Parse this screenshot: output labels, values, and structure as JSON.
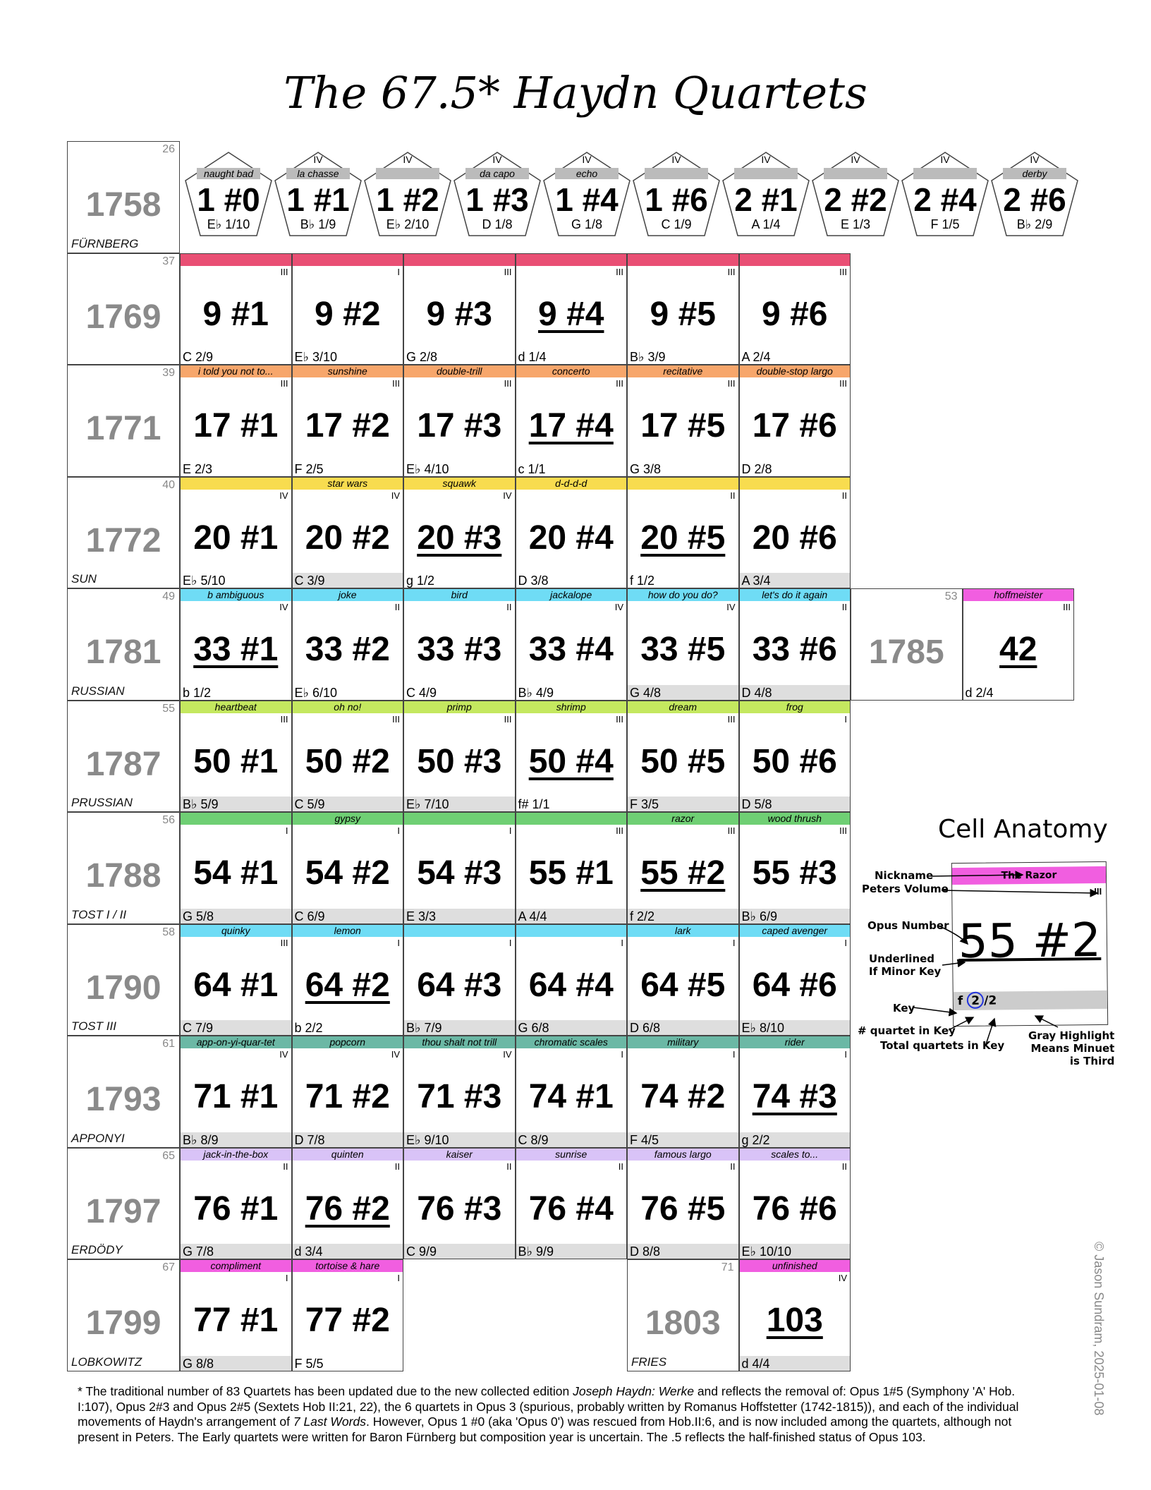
{
  "title": "The 67.5* Haydn Quartets",
  "rows": [
    {
      "index": "26",
      "year": "1758",
      "name": "FÜRNBERG",
      "pentagon": true,
      "cells": [
        {
          "vol": "",
          "nick": "naught bad",
          "opus": "1 #0",
          "key": "E♭ 1/10",
          "band": "#bbbbbb"
        },
        {
          "vol": "IV",
          "nick": "la chasse",
          "opus": "1 #1",
          "key": "B♭ 1/9",
          "band": "#bbbbbb"
        },
        {
          "vol": "IV",
          "nick": "",
          "opus": "1 #2",
          "key": "E♭ 2/10",
          "band": "#bbbbbb"
        },
        {
          "vol": "IV",
          "nick": "da capo",
          "opus": "1 #3",
          "key": "D 1/8",
          "band": "#bbbbbb"
        },
        {
          "vol": "IV",
          "nick": "echo",
          "opus": "1 #4",
          "key": "G 1/8",
          "band": "#bbbbbb"
        },
        {
          "vol": "IV",
          "nick": "",
          "opus": "1 #6",
          "key": "C 1/9",
          "band": "#bbbbbb"
        },
        {
          "vol": "IV",
          "nick": "",
          "opus": "2 #1",
          "key": "A 1/4",
          "band": "#bbbbbb"
        },
        {
          "vol": "IV",
          "nick": "",
          "opus": "2 #2",
          "key": "E 1/3",
          "band": "#bbbbbb"
        },
        {
          "vol": "IV",
          "nick": "",
          "opus": "2 #4",
          "key": "F 1/5",
          "band": "#bbbbbb"
        },
        {
          "vol": "IV",
          "nick": "derby",
          "opus": "2 #6",
          "key": "B♭ 2/9",
          "band": "#bbbbbb"
        }
      ]
    },
    {
      "index": "37",
      "year": "1769",
      "name": "",
      "cells": [
        {
          "vol": "III",
          "nick": "",
          "opus": "9 #1",
          "key": "C 2/9",
          "minor": false,
          "gray": false,
          "band": "#e94f74"
        },
        {
          "vol": "I",
          "nick": "",
          "opus": "9 #2",
          "key": "E♭ 3/10",
          "minor": false,
          "gray": false,
          "band": "#e94f74"
        },
        {
          "vol": "III",
          "nick": "",
          "opus": "9 #3",
          "key": "G 2/8",
          "minor": false,
          "gray": false,
          "band": "#e94f74"
        },
        {
          "vol": "III",
          "nick": "",
          "opus": "9 #4",
          "key": "d 1/4",
          "minor": true,
          "gray": false,
          "band": "#e94f74"
        },
        {
          "vol": "III",
          "nick": "",
          "opus": "9 #5",
          "key": "B♭ 3/9",
          "minor": false,
          "gray": false,
          "band": "#e94f74"
        },
        {
          "vol": "III",
          "nick": "",
          "opus": "9 #6",
          "key": "A 2/4",
          "minor": false,
          "gray": false,
          "band": "#e94f74"
        }
      ]
    },
    {
      "index": "39",
      "year": "1771",
      "name": "",
      "cells": [
        {
          "vol": "III",
          "nick": "i told you not to...",
          "opus": "17 #1",
          "key": "E 2/3",
          "minor": false,
          "gray": false,
          "band": "#f7a66b"
        },
        {
          "vol": "III",
          "nick": "sunshine",
          "opus": "17 #2",
          "key": "F 2/5",
          "minor": false,
          "gray": false,
          "band": "#f7a66b"
        },
        {
          "vol": "III",
          "nick": "double-trill",
          "opus": "17 #3",
          "key": "E♭ 4/10",
          "minor": false,
          "gray": false,
          "band": "#f7a66b"
        },
        {
          "vol": "III",
          "nick": "concerto",
          "opus": "17 #4",
          "key": "c 1/1",
          "minor": true,
          "gray": false,
          "band": "#f7a66b"
        },
        {
          "vol": "III",
          "nick": "recitative",
          "opus": "17 #5",
          "key": "G 3/8",
          "minor": false,
          "gray": false,
          "band": "#f7a66b"
        },
        {
          "vol": "III",
          "nick": "double-stop largo",
          "opus": "17 #6",
          "key": "D 2/8",
          "minor": false,
          "gray": false,
          "band": "#f7a66b"
        }
      ]
    },
    {
      "index": "40",
      "year": "1772",
      "name": "SUN",
      "cells": [
        {
          "vol": "IV",
          "nick": "",
          "opus": "20 #1",
          "key": "E♭ 5/10",
          "minor": false,
          "gray": false,
          "band": "#f8dc4f"
        },
        {
          "vol": "IV",
          "nick": "star wars",
          "opus": "20 #2",
          "key": "C 3/9",
          "minor": false,
          "gray": true,
          "band": "#f8dc4f"
        },
        {
          "vol": "IV",
          "nick": "squawk",
          "opus": "20 #3",
          "key": "g 1/2",
          "minor": true,
          "gray": false,
          "band": "#f8dc4f"
        },
        {
          "vol": "",
          "nick": "d-d-d-d",
          "opus": "20 #4",
          "key": "D 3/8",
          "minor": false,
          "gray": false,
          "band": "#f8dc4f"
        },
        {
          "vol": "II",
          "nick": "",
          "opus": "20 #5",
          "key": "f 1/2",
          "minor": true,
          "gray": false,
          "band": "#f8dc4f"
        },
        {
          "vol": "II",
          "nick": "",
          "opus": "20 #6",
          "key": "A 3/4",
          "minor": false,
          "gray": true,
          "band": "#f8dc4f"
        }
      ]
    },
    {
      "index": "49",
      "year": "1781",
      "name": "RUSSIAN",
      "cells": [
        {
          "vol": "IV",
          "nick": "b ambiguous",
          "opus": "33 #1",
          "key": "b 1/2",
          "minor": true,
          "gray": false,
          "band": "#6fdcf5"
        },
        {
          "vol": "II",
          "nick": "joke",
          "opus": "33 #2",
          "key": "E♭ 6/10",
          "minor": false,
          "gray": false,
          "band": "#6fdcf5"
        },
        {
          "vol": "II",
          "nick": "bird",
          "opus": "33 #3",
          "key": "C 4/9",
          "minor": false,
          "gray": false,
          "band": "#6fdcf5"
        },
        {
          "vol": "IV",
          "nick": "jackalope",
          "opus": "33 #4",
          "key": "B♭ 4/9",
          "minor": false,
          "gray": false,
          "band": "#6fdcf5"
        },
        {
          "vol": "IV",
          "nick": "how do you do?",
          "opus": "33 #5",
          "key": "G 4/8",
          "minor": false,
          "gray": true,
          "band": "#6fdcf5"
        },
        {
          "vol": "II",
          "nick": "let's do it again",
          "opus": "33 #6",
          "key": "D 4/8",
          "minor": false,
          "gray": true,
          "band": "#6fdcf5"
        }
      ],
      "extra": {
        "index": "53",
        "year": "1785",
        "vol": "III",
        "nick": "hoffmeister",
        "opus": "42",
        "key": "d 2/4",
        "band": "#f15ee0"
      }
    },
    {
      "index": "55",
      "year": "1787",
      "name": "PRUSSIAN",
      "cells": [
        {
          "vol": "III",
          "nick": "heartbeat",
          "opus": "50 #1",
          "key": "B♭ 5/9",
          "minor": false,
          "gray": true,
          "band": "#c4e85f"
        },
        {
          "vol": "III",
          "nick": "oh no!",
          "opus": "50 #2",
          "key": "C 5/9",
          "minor": false,
          "gray": true,
          "band": "#c4e85f"
        },
        {
          "vol": "III",
          "nick": "primp",
          "opus": "50 #3",
          "key": "E♭ 7/10",
          "minor": false,
          "gray": true,
          "band": "#c4e85f"
        },
        {
          "vol": "III",
          "nick": "shrimp",
          "opus": "50 #4",
          "key": "f# 1/1",
          "minor": true,
          "gray": false,
          "band": "#c4e85f"
        },
        {
          "vol": "III",
          "nick": "dream",
          "opus": "50 #5",
          "key": "F 3/5",
          "minor": false,
          "gray": true,
          "band": "#c4e85f"
        },
        {
          "vol": "I",
          "nick": "frog",
          "opus": "50 #6",
          "key": "D 5/8",
          "minor": false,
          "gray": true,
          "band": "#c4e85f"
        }
      ]
    },
    {
      "index": "56",
      "year": "1788",
      "name": "TOST I / II",
      "cells": [
        {
          "vol": "I",
          "nick": "",
          "opus": "54 #1",
          "key": "G 5/8",
          "minor": false,
          "gray": true,
          "band": "#6fcf74"
        },
        {
          "vol": "I",
          "nick": "gypsy",
          "opus": "54 #2",
          "key": "C 6/9",
          "minor": false,
          "gray": true,
          "band": "#6fcf74"
        },
        {
          "vol": "I",
          "nick": "",
          "opus": "54 #3",
          "key": "E 3/3",
          "minor": false,
          "gray": true,
          "band": "#6fcf74"
        },
        {
          "vol": "III",
          "nick": "",
          "opus": "55 #1",
          "key": "A 4/4",
          "minor": false,
          "gray": true,
          "band": "#6fcf74"
        },
        {
          "vol": "III",
          "nick": "razor",
          "opus": "55 #2",
          "key": "f 2/2",
          "minor": true,
          "gray": true,
          "band": "#6fcf74"
        },
        {
          "vol": "III",
          "nick": "wood thrush",
          "opus": "55 #3",
          "key": "B♭ 6/9",
          "minor": false,
          "gray": true,
          "band": "#6fcf74"
        }
      ]
    },
    {
      "index": "58",
      "year": "1790",
      "name": "TOST III",
      "cells": [
        {
          "vol": "III",
          "nick": "quinky",
          "opus": "64 #1",
          "key": "C 7/9",
          "minor": false,
          "gray": true,
          "band": "#6fdcf5"
        },
        {
          "vol": "I",
          "nick": "lemon",
          "opus": "64 #2",
          "key": "b 2/2",
          "minor": true,
          "gray": false,
          "band": "#6fdcf5"
        },
        {
          "vol": "I",
          "nick": "",
          "opus": "64 #3",
          "key": "B♭ 7/9",
          "minor": false,
          "gray": true,
          "band": "#6fdcf5"
        },
        {
          "vol": "I",
          "nick": "",
          "opus": "64 #4",
          "key": "G 6/8",
          "minor": false,
          "gray": true,
          "band": "#6fdcf5"
        },
        {
          "vol": "I",
          "nick": "lark",
          "opus": "64 #5",
          "key": "D 6/8",
          "minor": false,
          "gray": true,
          "band": "#6fdcf5"
        },
        {
          "vol": "I",
          "nick": "caped avenger",
          "opus": "64 #6",
          "key": "E♭ 8/10",
          "minor": false,
          "gray": true,
          "band": "#6fdcf5"
        }
      ]
    },
    {
      "index": "61",
      "year": "1793",
      "name": "APPONYI",
      "cells": [
        {
          "vol": "IV",
          "nick": "app-on-yi-quar-tet",
          "opus": "71 #1",
          "key": "B♭ 8/9",
          "minor": false,
          "gray": true,
          "band": "#6bb8a5"
        },
        {
          "vol": "IV",
          "nick": "popcorn",
          "opus": "71 #2",
          "key": "D 7/8",
          "minor": false,
          "gray": true,
          "band": "#6bb8a5"
        },
        {
          "vol": "IV",
          "nick": "thou shalt not trill",
          "opus": "71 #3",
          "key": "E♭ 9/10",
          "minor": false,
          "gray": true,
          "band": "#6bb8a5"
        },
        {
          "vol": "I",
          "nick": "chromatic scales",
          "opus": "74 #1",
          "key": "C 8/9",
          "minor": false,
          "gray": true,
          "band": "#6bb8a5"
        },
        {
          "vol": "I",
          "nick": "military",
          "opus": "74 #2",
          "key": "F 4/5",
          "minor": false,
          "gray": true,
          "band": "#6bb8a5"
        },
        {
          "vol": "I",
          "nick": "rider",
          "opus": "74 #3",
          "key": "g 2/2",
          "minor": true,
          "gray": true,
          "band": "#6bb8a5"
        }
      ]
    },
    {
      "index": "65",
      "year": "1797",
      "name": "ERDÖDY",
      "cells": [
        {
          "vol": "II",
          "nick": "jack-in-the-box",
          "opus": "76 #1",
          "key": "G 7/8",
          "minor": false,
          "gray": true,
          "band": "#d9c3f7"
        },
        {
          "vol": "II",
          "nick": "quinten",
          "opus": "76 #2",
          "key": "d 3/4",
          "minor": true,
          "gray": true,
          "band": "#d9c3f7"
        },
        {
          "vol": "II",
          "nick": "kaiser",
          "opus": "76 #3",
          "key": "C 9/9",
          "minor": false,
          "gray": true,
          "band": "#d9c3f7"
        },
        {
          "vol": "II",
          "nick": "sunrise",
          "opus": "76 #4",
          "key": "B♭ 9/9",
          "minor": false,
          "gray": true,
          "band": "#d9c3f7"
        },
        {
          "vol": "II",
          "nick": "famous largo",
          "opus": "76 #5",
          "key": "D 8/8",
          "minor": false,
          "gray": true,
          "band": "#d9c3f7"
        },
        {
          "vol": "II",
          "nick": "scales to...",
          "opus": "76 #6",
          "key": "E♭ 10/10",
          "minor": false,
          "gray": true,
          "band": "#d9c3f7"
        }
      ]
    },
    {
      "index": "67",
      "year": "1799",
      "name": "LOBKOWITZ",
      "cells": [
        {
          "vol": "I",
          "nick": "compliment",
          "opus": "77 #1",
          "key": "G 8/8",
          "minor": false,
          "gray": true,
          "band": "#f15ee0"
        },
        {
          "vol": "I",
          "nick": "tortoise & hare",
          "opus": "77 #2",
          "key": "F 5/5",
          "minor": false,
          "gray": false,
          "band": "#f15ee0"
        }
      ],
      "extra": {
        "index": "71",
        "year": "1803",
        "name": "FRIES",
        "vol": "IV",
        "nick": "unfinished",
        "opus": "103",
        "key": "d 4/4",
        "band": "#f15ee0"
      }
    }
  ],
  "anatomy": {
    "title": "Cell Anatomy",
    "nick": "The Razor",
    "vol": "III",
    "opus": "55 #2",
    "key_letter": "f",
    "key_num": "2",
    "key_total": "2",
    "labels": {
      "nickname": "Nickname",
      "peters": "Peters Volume",
      "opus": "Opus Number",
      "underlined": "Underlined\nIf Minor Key",
      "key": "Key",
      "num": "# quartet in Key",
      "total": "Total quartets in Key",
      "gray": "Gray Highlight\nMeans Minuet\nis Third"
    },
    "colors": {
      "band": "#f15ee0",
      "gray": "#cccccc",
      "circle": "#2233dd"
    }
  },
  "footnote": {
    "p1": "* The traditional number of 83 Quartets has been updated due to the new collected edition ",
    "edition": "Joseph Haydn: Werke",
    "p2": " and reflects the removal of: Opus 1#5 (Symphony 'A' Hob. I:107), Opus 2#3 and Opus 2#5 (Sextets Hob II:21, 22), the 6 quartets in Opus 3 (spurious, probably written by Romanus Hoffstetter (1742-1815)), and each of the individual movements of Haydn's arrangement of ",
    "words": "7 Last Words",
    "p3": ". However, Opus 1 #0 (aka 'Opus 0') was rescued from Hob.II:6, and is now included among the quartets, although not present in Peters. The Early quartets were written for Baron Fürnberg but composition year is uncertain. The .5 reflects the half-finished status of Opus 103."
  },
  "copyright": "© Jason Sundram, 2025-01-08"
}
